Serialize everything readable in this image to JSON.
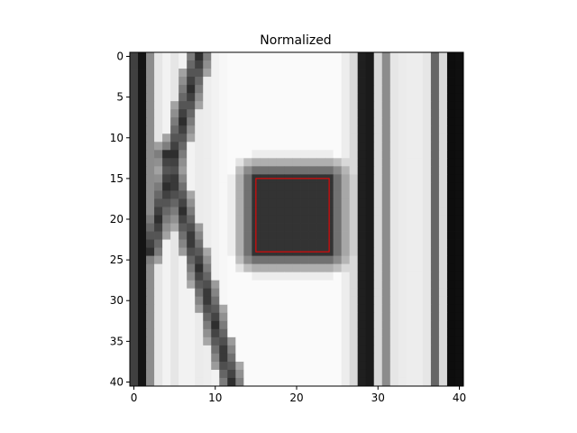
{
  "chart_data": {
    "type": "heatmap",
    "title": "Normalized",
    "colormap": "gray",
    "grid": false,
    "xlim": [
      -0.5,
      40.5
    ],
    "ylim": [
      40.5,
      -0.5
    ],
    "x_ticks": [
      0,
      10,
      20,
      30,
      40
    ],
    "y_ticks": [
      0,
      5,
      10,
      15,
      20,
      25,
      30,
      35,
      40
    ],
    "rows": 41,
    "cols": 41,
    "value_range": [
      0,
      1
    ],
    "column_profile": [
      0.25,
      0.08,
      0.55,
      0.9,
      0.95,
      0.9,
      0.95,
      0.95,
      0.92,
      0.93,
      0.95,
      0.97,
      0.98,
      0.98,
      0.98,
      0.98,
      0.98,
      0.98,
      0.98,
      0.98,
      0.98,
      0.98,
      0.98,
      0.98,
      0.98,
      0.98,
      0.93,
      0.85,
      0.12,
      0.1,
      0.85,
      0.55,
      0.9,
      0.92,
      0.93,
      0.93,
      0.9,
      0.4,
      0.85,
      0.05,
      0.06
    ],
    "dark_region": {
      "x": [
        15,
        24
      ],
      "y": [
        15,
        24
      ],
      "value": 0.2
    },
    "diagonal_lines": [
      {
        "from": [
          8,
          0
        ],
        "to": [
          2,
          24
        ],
        "value": 0.18
      },
      {
        "from": [
          4,
          12
        ],
        "to": [
          12,
          40
        ],
        "value": 0.18
      }
    ],
    "highlight_box": {
      "x0": 15,
      "y0": 15,
      "x1": 24,
      "y1": 24,
      "color": "#ff0000"
    }
  }
}
